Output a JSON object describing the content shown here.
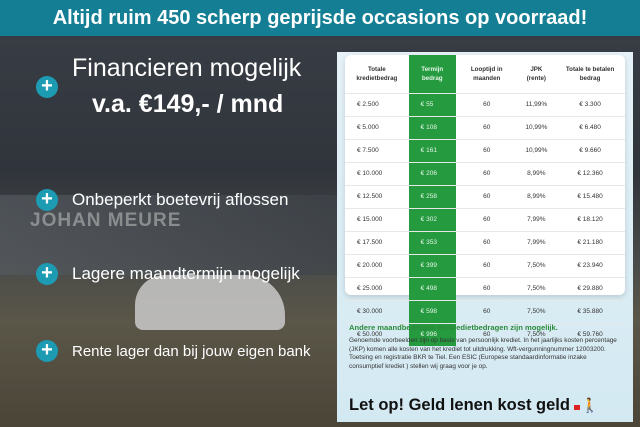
{
  "banner": "Altijd ruim 450 scherp geprijsde occasions op voorraad!",
  "background_sign": "JOHAN MEURE",
  "headline": {
    "line1": "Financieren mogelijk",
    "line2": "v.a. €149,- / mnd"
  },
  "bullets": [
    "Onbeperkt boetevrij aflossen",
    "Lagere maandtermijn mogelijk",
    "Rente lager dan bij jouw eigen bank"
  ],
  "plus_symbol": "+",
  "table": {
    "headers": [
      "Totale kredietbedrag",
      "Termijn bedrag",
      "Looptijd in maanden",
      "JPK (rente)",
      "Totale te betalen bedrag"
    ],
    "rows": [
      [
        "€ 2.500",
        "€ 55",
        "60",
        "11,99%",
        "€ 3.300"
      ],
      [
        "€ 5.000",
        "€ 108",
        "60",
        "10,99%",
        "€ 6.480"
      ],
      [
        "€ 7.500",
        "€ 161",
        "60",
        "10,99%",
        "€ 9.660"
      ],
      [
        "€ 10.000",
        "€ 206",
        "60",
        "8,99%",
        "€ 12.360"
      ],
      [
        "€ 12.500",
        "€ 258",
        "60",
        "8,99%",
        "€ 15.480"
      ],
      [
        "€ 15.000",
        "€ 302",
        "60",
        "7,99%",
        "€ 18.120"
      ],
      [
        "€ 17.500",
        "€ 353",
        "60",
        "7,99%",
        "€ 21.180"
      ],
      [
        "€ 20.000",
        "€ 399",
        "60",
        "7,50%",
        "€ 23.940"
      ],
      [
        "€ 25.000",
        "€ 498",
        "60",
        "7,50%",
        "€ 29.880"
      ],
      [
        "€ 30.000",
        "€ 598",
        "60",
        "7,50%",
        "€ 35.880"
      ],
      [
        "€ 50.000",
        "€ 996",
        "60",
        "7,50%",
        "€ 59.760"
      ]
    ]
  },
  "note_heading": "Andere maandbedragen en kredietbedragen zijn mogelijk.",
  "note_body": "Genoemde voorbeelden zijn op basis van persoonlijk krediet. In het jaarlijks kosten percentage (JKP) komen alle kosten van het krediet tot uitdrukking. Wft-vergunningnummer 12003200. Toetsing en registratie BKR te Tiel. Een ESIC (Europese standaardinformatie inzake consumptief krediet ) stellen wij graag voor je op.",
  "warning": "Let op! Geld lenen kost geld",
  "colors": {
    "banner": "#147f94",
    "accent": "#1c9bb3",
    "green": "#259a3f"
  }
}
